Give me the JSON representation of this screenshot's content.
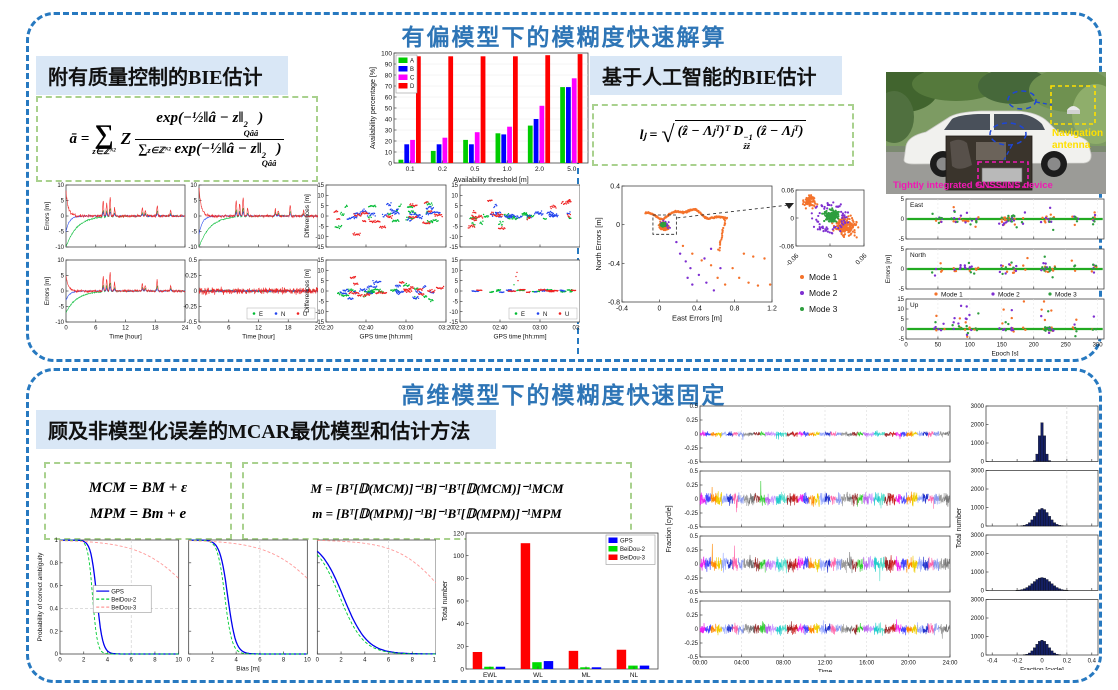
{
  "top_panel": {
    "title": "有偏模型下的模糊度快速解算",
    "left": {
      "header": "附有质量控制的BIE估计",
      "formula": {
        "lhs": "ā =",
        "sum": "∑",
        "sum_sub": "z∈ℤᴺ²",
        "factor": "Z",
        "num_pre": "exp(−½‖â − z‖",
        "ss_sup": "2",
        "ss_sub": "Qââ",
        "num_post": ")",
        "den_sum": "∑",
        "den_sum_sub": "z∈ℤᴺ²",
        "den_pre": " exp(−½‖â − z‖",
        "den_post": ")"
      }
    },
    "right": {
      "header": "基于人工智能的BIE估计",
      "formula": {
        "lhs": "lⱼ =",
        "sqrt": "√",
        "pre": "(ẑ − Λⱼᵀ)ᵀ D",
        "ss_sup": "−1",
        "ss_sub": "ẑẑ",
        "post": " (ẑ − Λⱼᵀ)"
      }
    },
    "photo": {
      "antenna_line1": "Navigation",
      "antenna_line2": "antenna",
      "device_label": "Tightly integrated GNSS/INS device"
    }
  },
  "bottom_panel": {
    "title": "高维模型下的模糊度快速固定",
    "header": "顾及非模型化误差的MCAR最优模型和估计方法",
    "formulas": {
      "mcm": "MCM = BM + ε",
      "mpm": "MPM = Bm + e",
      "M": "M = [Bᵀ[𝔻(MCM)]⁻¹B]⁻¹Bᵀ[𝔻(MCM)]⁻¹MCM",
      "m": "m = [Bᵀ[𝔻(MPM)]⁻¹B]⁻¹Bᵀ[𝔻(MPM)]⁻¹MPM"
    }
  },
  "colors": {
    "title_blue": "#2e75b6",
    "panel_border": "#2779c0",
    "header_bg": "#d9e7f6",
    "formula_border": "#a9d18e",
    "east_green": "#00bb33",
    "north_blue": "#2244ee",
    "up_red": "#ee2222",
    "mode1_orange": "#f4722b",
    "mode2_purple": "#7e2fd0",
    "mode3_green": "#2e9e3e",
    "hist_navy": "#141f63"
  },
  "chart_data": [
    {
      "id": "availability",
      "type": "bar",
      "categories": [
        "0.1",
        "0.2",
        "0.5",
        "1.0",
        "2.0",
        "5.0"
      ],
      "series": [
        {
          "name": "A",
          "color": "#00cc00",
          "values": [
            3,
            11,
            21,
            27,
            34,
            69
          ]
        },
        {
          "name": "B",
          "color": "#0000ff",
          "values": [
            17,
            17,
            17,
            26,
            40,
            69
          ]
        },
        {
          "name": "C",
          "color": "#ff00ff",
          "values": [
            21,
            23,
            28,
            33,
            52,
            77
          ]
        },
        {
          "name": "D",
          "color": "#ff0000",
          "values": [
            97,
            97,
            97,
            97,
            98,
            99
          ]
        }
      ],
      "xlabel": "Availability threshold [m]",
      "ylabel": "Availability percentage [%]",
      "ylim": [
        0,
        100
      ],
      "yticks": [
        0,
        10,
        20,
        30,
        40,
        50,
        60,
        70,
        80,
        90,
        100
      ],
      "ygrid": true,
      "legend_pos": "top-left"
    },
    {
      "id": "errors_hours",
      "type": "noise-grid",
      "ylabel": "Errors [m]",
      "xlabel": "Time [hour]",
      "xticks": [
        0,
        6,
        12,
        18,
        24
      ],
      "series": [
        {
          "name": "E",
          "color": "#00bb33"
        },
        {
          "name": "N",
          "color": "#2244ee"
        },
        {
          "name": "U",
          "color": "#ee2222"
        }
      ],
      "panels": [
        {
          "ylim": [
            -10,
            10
          ],
          "yticks": [
            -10,
            -5,
            0,
            5,
            10
          ],
          "amp": [
            0.35,
            0.3,
            0.8
          ],
          "start": [
            -10,
            -5,
            8
          ],
          "spikes": true,
          "seed": 11
        },
        {
          "ylim": [
            -10,
            10
          ],
          "yticks": [
            -10,
            -5,
            0,
            5,
            10
          ],
          "amp": [
            0.3,
            0.28,
            0.7
          ],
          "start": [
            -10,
            -6,
            9
          ],
          "spikes": true,
          "seed": 22
        },
        {
          "ylim": [
            -10,
            10
          ],
          "yticks": [
            -10,
            -5,
            0,
            5,
            10
          ],
          "amp": [
            0.3,
            0.25,
            0.65
          ],
          "start": [
            -7,
            -3,
            5
          ],
          "spikes": true,
          "seed": 33
        },
        {
          "ylim": [
            -0.5,
            0.5
          ],
          "yticks": [
            -0.5,
            -0.25,
            0,
            0.25,
            0.5
          ],
          "amp": [
            0.03,
            0.025,
            0.085
          ],
          "start": [
            0,
            0,
            0
          ],
          "spikes": false,
          "seed": 44,
          "legend": true
        }
      ]
    },
    {
      "id": "differences_gps",
      "type": "sparse-grid",
      "ylabel": "Differences [m]",
      "xlabel": "GPS time [hh:mm]",
      "xtick_labels": [
        "02:20",
        "02:40",
        "03:00",
        "03:20"
      ],
      "ylim": [
        -15,
        15
      ],
      "yticks": [
        -15,
        -10,
        -5,
        0,
        5,
        10,
        15
      ],
      "series": [
        {
          "name": "E",
          "color": "#00bb33"
        },
        {
          "name": "N",
          "color": "#2244ee"
        },
        {
          "name": "U",
          "color": "#ee2222"
        }
      ],
      "panels": [
        {
          "seed": 7,
          "spread": 6
        },
        {
          "seed": 13,
          "spread": 5
        },
        {
          "seed": 21,
          "spread": 4.5
        },
        {
          "seed": 29,
          "spread": 1,
          "flat": true,
          "legend": true
        }
      ]
    },
    {
      "id": "scatter_modes",
      "type": "scatter-modes",
      "xlabel": "East Errors [m]",
      "ylabel": "North Errors [m]",
      "xlim": [
        -0.4,
        1.2
      ],
      "xticks": [
        -0.4,
        0,
        0.4,
        0.8,
        1.2
      ],
      "ylim": [
        -0.8,
        0.4
      ],
      "yticks": [
        -0.8,
        -0.4,
        0,
        0.4
      ],
      "inset": {
        "lim": [
          -0.06,
          0.06
        ],
        "ticks": [
          -0.06,
          0,
          0.06
        ]
      },
      "modes": [
        {
          "name": "Mode 1",
          "color": "#f4722b"
        },
        {
          "name": "Mode 2",
          "color": "#7e2fd0"
        },
        {
          "name": "Mode 3",
          "color": "#2e9e3e"
        }
      ]
    },
    {
      "id": "enu_epoch",
      "type": "enu",
      "ylabel": "Errors [m]",
      "xlabel": "Epoch [s]",
      "xticks": [
        0,
        50,
        100,
        150,
        200,
        250,
        300
      ],
      "panels": [
        {
          "name": "East",
          "ylim": [
            -5,
            5
          ],
          "yticks": [
            -5,
            0,
            5
          ]
        },
        {
          "name": "North",
          "ylim": [
            -5,
            5
          ],
          "yticks": [
            -5,
            0,
            5
          ]
        },
        {
          "name": "Up",
          "ylim": [
            -5,
            15
          ],
          "yticks": [
            -5,
            0,
            5,
            10,
            15
          ]
        }
      ],
      "modes": [
        {
          "name": "Mode 1",
          "color": "#f4722b"
        },
        {
          "name": "Mode 2",
          "color": "#7e2fd0"
        },
        {
          "name": "Mode 3",
          "color": "#2e9e3e"
        }
      ],
      "zero_line_color": "#22aa22"
    },
    {
      "id": "prob_curves",
      "type": "sigmoid-row",
      "ylabel": "Probability of correct ambiguity",
      "xlabel": "Bias [m]",
      "xlim": [
        0,
        10
      ],
      "xticks": [
        0,
        2,
        4,
        6,
        8,
        10
      ],
      "ylim": [
        0,
        1
      ],
      "yticks": [
        0,
        0.2,
        0.4,
        0.6,
        0.8,
        1
      ],
      "series": [
        {
          "name": "GPS",
          "color": "#0000ee",
          "dash": "solid"
        },
        {
          "name": "BeiDou-2",
          "color": "#00cc33",
          "dash": "dash"
        },
        {
          "name": "BeiDou-3",
          "color": "#ff9999",
          "dash": "dash"
        }
      ],
      "panels": [
        {
          "legend": true,
          "params": [
            {
              "c": 3.1,
              "k": 4
            },
            {
              "c": 2.75,
              "k": 5
            },
            {
              "c": 11.5,
              "k": 0.45
            }
          ]
        },
        {
          "params": [
            {
              "c": 3.3,
              "k": 3
            },
            {
              "c": 3.05,
              "k": 3.3
            },
            {
              "c": 11.5,
              "k": 0.45
            }
          ]
        },
        {
          "params": [
            {
              "c": 2.2,
              "k": 1.0
            },
            {
              "c": 1.9,
              "k": 1.0
            },
            {
              "c": 11.0,
              "k": 0.5
            }
          ]
        }
      ]
    },
    {
      "id": "total_number",
      "type": "bar",
      "categories": [
        "EWL",
        "WL",
        "ML",
        "NL"
      ],
      "series": [
        {
          "name": "BeiDou-3",
          "color": "#ff0000",
          "values": [
            15,
            111,
            16,
            17
          ]
        },
        {
          "name": "BeiDou-2",
          "color": "#00dd00",
          "values": [
            2,
            6,
            1.5,
            3
          ]
        },
        {
          "name": "GPS",
          "color": "#0000ff",
          "values": [
            2,
            7,
            1.5,
            3
          ]
        }
      ],
      "legend": [
        {
          "name": "GPS",
          "color": "#0000ff"
        },
        {
          "name": "BeiDou-2",
          "color": "#00dd00"
        },
        {
          "name": "BeiDou-3",
          "color": "#ff0000"
        }
      ],
      "xlabel": "",
      "ylabel": "Total number",
      "ylim": [
        0,
        120
      ],
      "yticks": [
        0,
        20,
        40,
        60,
        80,
        100,
        120
      ],
      "ygrid": false,
      "legend_pos": "top-right"
    },
    {
      "id": "fraction_series",
      "type": "multinoise",
      "ylabel": "Fraction [cycle]",
      "xlabel": "Time",
      "xtick_labels": [
        "00:00",
        "04:00",
        "08:00",
        "12:00",
        "16:00",
        "20:00",
        "24:00"
      ],
      "ylim": [
        -0.5,
        0.5
      ],
      "yticks": [
        -0.5,
        -0.25,
        0,
        0.25,
        0.5
      ],
      "panels": [
        {
          "amp": 0.04,
          "seed": 5
        },
        {
          "amp": 0.1,
          "seed": 6
        },
        {
          "amp": 0.11,
          "seed": 7
        },
        {
          "amp": 0.08,
          "seed": 8
        }
      ],
      "palette": [
        "#ee22ee",
        "#4444ff",
        "#ff8800",
        "#eecc00",
        "#99aaff",
        "#2233cc",
        "#ff66aa",
        "#8899ee",
        "#999999",
        "#777777",
        "#993333",
        "#33cc33",
        "#bb66ee",
        "#cc99ff",
        "#22cccc",
        "#55ddcc",
        "#992222",
        "#cc2222"
      ]
    },
    {
      "id": "fraction_hist",
      "type": "hist-col",
      "ylabel": "Total number",
      "xlabel": "Fraction [cycle]",
      "xlim": [
        -0.45,
        0.45
      ],
      "xticks": [
        -0.4,
        -0.2,
        0,
        0.2,
        0.4
      ],
      "ylim": [
        0,
        3000
      ],
      "yticks": [
        0,
        1000,
        2000,
        3000
      ],
      "color": "#141f63",
      "bin_width": 0.02,
      "panels": [
        {
          "peak": 2100,
          "sigma": 0.022
        },
        {
          "peak": 950,
          "sigma": 0.055
        },
        {
          "peak": 700,
          "sigma": 0.07
        },
        {
          "peak": 800,
          "sigma": 0.05
        }
      ]
    }
  ]
}
